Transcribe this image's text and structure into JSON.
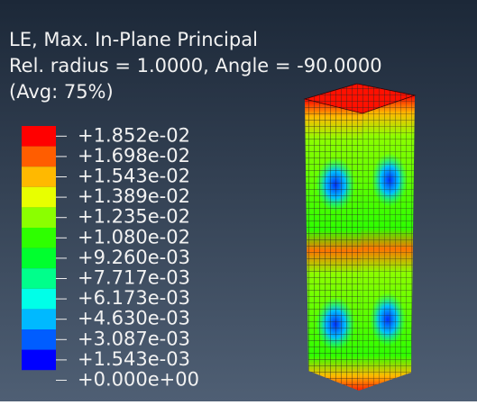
{
  "header": {
    "lines": [
      "LE, Max. In-Plane Principal",
      "Rel. radius = 1.0000, Angle = -90.0000",
      "(Avg: 75%)"
    ]
  },
  "legend": {
    "labels": [
      "+1.852e-02",
      "+1.698e-02",
      "+1.543e-02",
      "+1.389e-02",
      "+1.235e-02",
      "+1.080e-02",
      "+9.260e-03",
      "+7.717e-03",
      "+6.173e-03",
      "+4.630e-03",
      "+3.087e-03",
      "+1.543e-03",
      "+0.000e+00"
    ]
  }
}
